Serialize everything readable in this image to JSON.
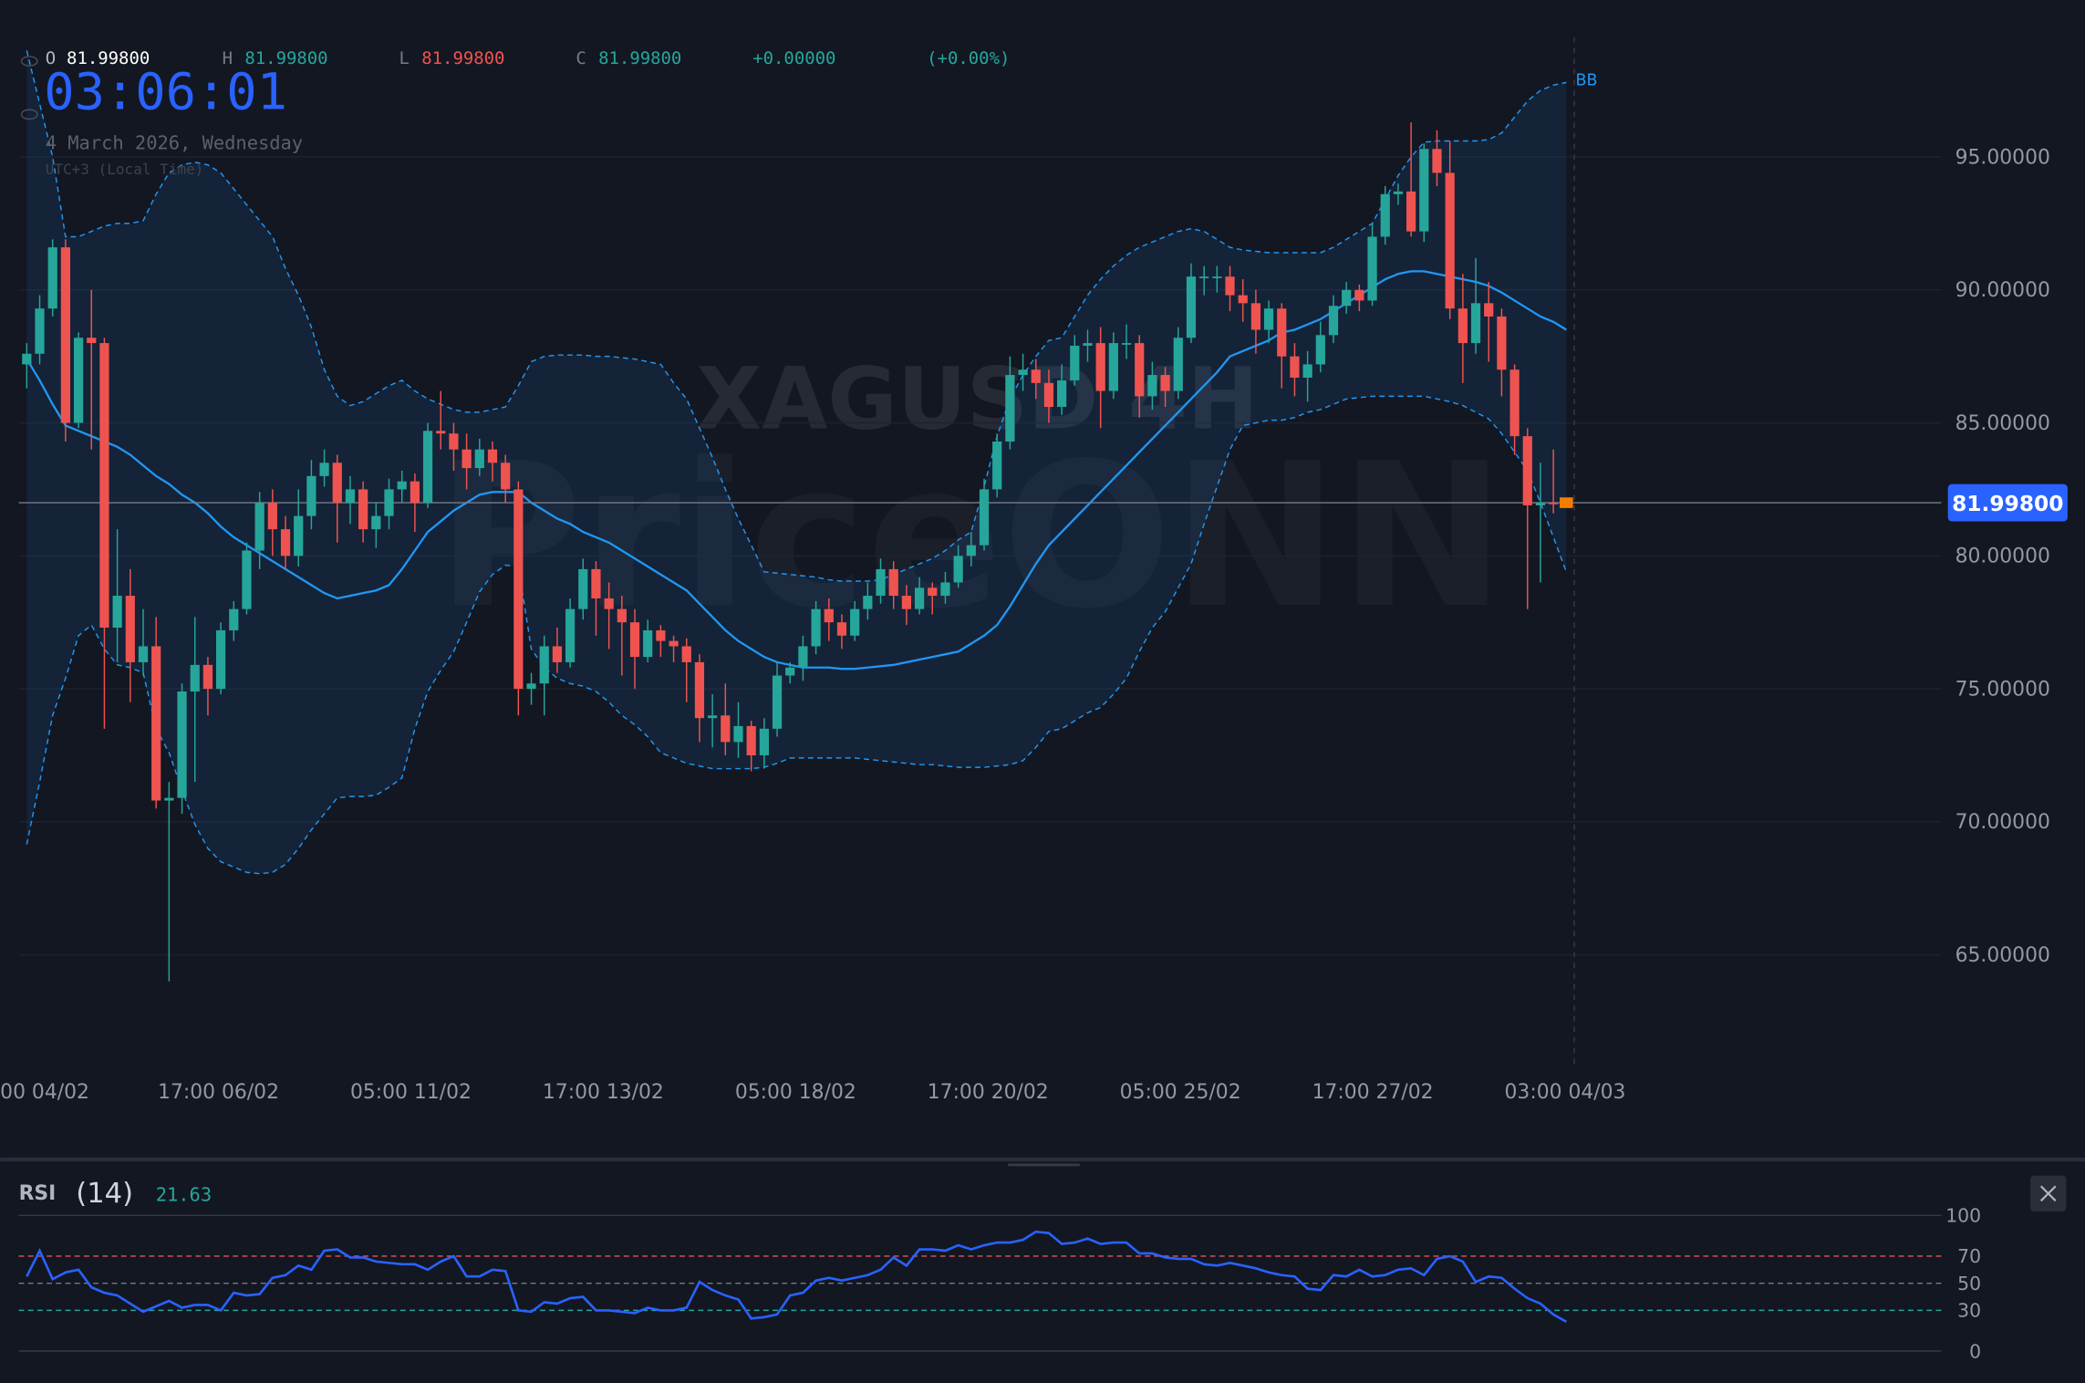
{
  "header": {
    "o_label": "O",
    "open": "81.99800",
    "h_label": "H",
    "high": "81.99800",
    "l_label": "L",
    "low": "81.99800",
    "c_label": "C",
    "close": "81.99800",
    "change": "+0.00000",
    "change_pct": "(+0.00%)"
  },
  "clock": {
    "time": "03:06:01",
    "date": "4 March 2026, Wednesday",
    "timezone": "UTC+3 (Local Time)"
  },
  "chart_data": [
    {
      "type": "candlestick",
      "watermark": "XAGUSD 4H",
      "brand": "PriceONN",
      "x_labels": [
        "00 04/02",
        "17:00 06/02",
        "05:00 11/02",
        "17:00 13/02",
        "05:00 18/02",
        "17:00 20/02",
        "05:00 25/02",
        "17:00 27/02",
        "03:00 04/03"
      ],
      "open": [
        87.2,
        87.6,
        89.3,
        91.6,
        85.0,
        88.2,
        88.0,
        77.3,
        78.5,
        76.0,
        76.6,
        70.8,
        70.9,
        74.9,
        75.9,
        75.0,
        77.2,
        78.0,
        80.2,
        82.0,
        81.0,
        80.0,
        81.5,
        83.0,
        83.5,
        82.0,
        82.5,
        81.0,
        81.5,
        82.5,
        82.8,
        82.0,
        84.7,
        84.6,
        84.0,
        83.3,
        84.0,
        83.5,
        82.5,
        75.0,
        75.2,
        76.6,
        76.0,
        78.0,
        79.5,
        78.4,
        78.0,
        77.5,
        76.2,
        77.2,
        76.8,
        76.6,
        76.0,
        73.9,
        74.0,
        73.0,
        73.6,
        72.5,
        73.5,
        75.5,
        75.8,
        76.6,
        78.0,
        77.5,
        77.0,
        78.0,
        78.5,
        79.5,
        78.5,
        78.0,
        78.8,
        78.5,
        79.0,
        80.0,
        80.4,
        82.5,
        84.3,
        86.8,
        87.0,
        86.5,
        85.6,
        86.6,
        87.9,
        88.0,
        86.2,
        88.0,
        88.0,
        86.0,
        86.8,
        86.2,
        88.2,
        90.5,
        90.5,
        90.5,
        89.8,
        89.5,
        88.5,
        89.3,
        87.5,
        86.7,
        87.2,
        88.3,
        89.4,
        90.0,
        89.6,
        92.0,
        93.6,
        93.7,
        92.2,
        95.3,
        94.4,
        89.3,
        88.0,
        89.5,
        89.0,
        87.0,
        84.5,
        81.9,
        82.0,
        81.998
      ],
      "high": [
        88.0,
        89.8,
        91.9,
        91.9,
        88.4,
        90.0,
        88.2,
        81.0,
        79.5,
        78.0,
        77.7,
        71.5,
        75.2,
        77.7,
        76.2,
        77.5,
        78.3,
        80.5,
        82.4,
        82.5,
        81.5,
        82.5,
        83.6,
        84.0,
        83.8,
        83.0,
        82.8,
        82.0,
        82.9,
        83.2,
        83.1,
        85.0,
        86.2,
        85.0,
        84.6,
        84.4,
        84.3,
        83.8,
        82.8,
        75.6,
        77.0,
        77.3,
        78.4,
        79.9,
        79.8,
        79.0,
        78.5,
        78.0,
        77.6,
        77.4,
        77.0,
        76.9,
        76.3,
        74.8,
        75.2,
        74.5,
        73.8,
        73.9,
        76.0,
        76.0,
        77.0,
        78.3,
        78.4,
        77.8,
        78.3,
        79.0,
        79.9,
        79.8,
        78.9,
        79.2,
        79.0,
        79.4,
        80.4,
        80.9,
        82.9,
        84.6,
        87.5,
        87.6,
        87.4,
        87.0,
        87.2,
        88.3,
        88.5,
        88.6,
        88.4,
        88.7,
        88.3,
        87.3,
        87.1,
        88.6,
        91.0,
        90.9,
        90.9,
        90.9,
        90.4,
        90.0,
        89.6,
        89.5,
        88.0,
        87.7,
        88.8,
        89.8,
        90.3,
        90.2,
        92.5,
        93.9,
        94.0,
        96.3,
        95.5,
        96.0,
        95.6,
        90.6,
        91.2,
        90.3,
        89.3,
        87.2,
        84.8,
        83.5,
        84.0,
        81.998
      ],
      "low": [
        86.3,
        87.2,
        89.0,
        84.3,
        84.8,
        84.0,
        73.5,
        76.0,
        74.5,
        75.5,
        70.5,
        64.0,
        70.3,
        71.5,
        74.0,
        74.8,
        76.8,
        77.8,
        79.5,
        80.0,
        79.5,
        79.6,
        81.0,
        82.6,
        80.5,
        81.2,
        80.5,
        80.3,
        81.0,
        82.0,
        80.9,
        81.8,
        84.0,
        83.2,
        82.5,
        83.0,
        82.8,
        82.0,
        74.0,
        74.4,
        74.0,
        75.6,
        75.8,
        77.6,
        77.0,
        76.5,
        75.5,
        75.0,
        76.0,
        76.2,
        76.0,
        74.5,
        73.0,
        72.8,
        72.5,
        72.4,
        71.9,
        72.0,
        73.2,
        75.2,
        75.3,
        76.3,
        76.8,
        76.5,
        76.8,
        77.6,
        78.2,
        78.0,
        77.4,
        77.8,
        77.8,
        78.2,
        78.8,
        79.6,
        80.2,
        82.2,
        84.0,
        86.2,
        85.9,
        85.0,
        85.3,
        86.4,
        87.3,
        84.8,
        85.9,
        87.4,
        85.2,
        85.5,
        85.6,
        85.9,
        88.0,
        89.8,
        89.9,
        89.2,
        88.8,
        87.6,
        88.0,
        86.3,
        86.0,
        85.8,
        86.9,
        88.0,
        89.1,
        89.2,
        89.4,
        91.7,
        93.2,
        92.0,
        91.8,
        93.9,
        88.9,
        86.5,
        87.6,
        87.3,
        86.0,
        83.8,
        78.0,
        79.0,
        81.6,
        81.998
      ],
      "close": [
        87.6,
        89.3,
        91.6,
        85.0,
        88.2,
        88.0,
        77.3,
        78.5,
        76.0,
        76.6,
        70.8,
        70.9,
        74.9,
        75.9,
        75.0,
        77.2,
        78.0,
        80.2,
        82.0,
        81.0,
        80.0,
        81.5,
        83.0,
        83.5,
        82.0,
        82.5,
        81.0,
        81.5,
        82.5,
        82.8,
        82.0,
        84.7,
        84.6,
        84.0,
        83.3,
        84.0,
        83.5,
        82.5,
        75.0,
        75.2,
        76.6,
        76.0,
        78.0,
        79.5,
        78.4,
        78.0,
        77.5,
        76.2,
        77.2,
        76.8,
        76.6,
        76.0,
        73.9,
        74.0,
        73.0,
        73.6,
        72.5,
        73.5,
        75.5,
        75.8,
        76.6,
        78.0,
        77.5,
        77.0,
        78.0,
        78.5,
        79.5,
        78.5,
        78.0,
        78.8,
        78.5,
        79.0,
        80.0,
        80.4,
        82.5,
        84.3,
        86.8,
        87.0,
        86.5,
        85.6,
        86.6,
        87.9,
        88.0,
        86.2,
        88.0,
        88.0,
        86.0,
        86.8,
        86.2,
        88.2,
        90.5,
        90.5,
        90.5,
        89.8,
        89.5,
        88.5,
        89.3,
        87.5,
        86.7,
        87.2,
        88.3,
        89.4,
        90.0,
        89.6,
        92.0,
        93.6,
        93.7,
        92.2,
        95.3,
        94.4,
        89.3,
        88.0,
        89.5,
        89.0,
        87.0,
        84.5,
        81.9,
        82.0,
        81.95,
        81.998
      ],
      "up_color": "#26a69a",
      "down_color": "#ef5350",
      "ylim": [
        60.9,
        100.9
      ],
      "yticks": [
        {
          "value": 65,
          "label": "65.00000"
        },
        {
          "value": 70,
          "label": "70.00000"
        },
        {
          "value": 75,
          "label": "75.00000"
        },
        {
          "value": 80,
          "label": "80.00000"
        },
        {
          "value": 85,
          "label": "85.00000"
        },
        {
          "value": 90,
          "label": "90.00000"
        },
        {
          "value": 95,
          "label": "95.00000"
        }
      ],
      "grid": true,
      "current_price": {
        "value": 81.998,
        "label": "81.99800"
      },
      "indicator": {
        "name": "BB",
        "color": "#2196f3",
        "upper": [
          99.0,
          97.0,
          95.0,
          92.0,
          92.0,
          92.2,
          92.4,
          92.5,
          92.5,
          92.6,
          93.6,
          94.4,
          94.7,
          94.8,
          94.7,
          94.4,
          93.8,
          93.2,
          92.6,
          92.0,
          90.8,
          89.8,
          88.6,
          87.0,
          86.0,
          85.65,
          85.8,
          86.1,
          86.4,
          86.6,
          86.2,
          85.9,
          85.7,
          85.5,
          85.4,
          85.4,
          85.5,
          85.6,
          86.4,
          87.3,
          87.5,
          87.55,
          87.55,
          87.55,
          87.5,
          87.5,
          87.45,
          87.4,
          87.3,
          87.2,
          86.5,
          85.9,
          84.8,
          83.7,
          82.5,
          81.4,
          80.4,
          79.4,
          79.35,
          79.3,
          79.25,
          79.2,
          79.1,
          79.05,
          79.05,
          79.05,
          79.1,
          79.3,
          79.5,
          79.7,
          79.9,
          80.2,
          80.6,
          80.9,
          82.6,
          84.5,
          85.9,
          86.8,
          87.5,
          88.1,
          88.2,
          89.0,
          89.8,
          90.4,
          90.9,
          91.3,
          91.6,
          91.8,
          92.0,
          92.2,
          92.3,
          92.2,
          91.9,
          91.6,
          91.5,
          91.45,
          91.4,
          91.4,
          91.4,
          91.4,
          91.4,
          91.6,
          91.9,
          92.2,
          92.5,
          93.4,
          94.3,
          95.0,
          95.55,
          95.6,
          95.6,
          95.6,
          95.6,
          95.65,
          95.9,
          96.5,
          97.1,
          97.5,
          97.7,
          97.8
        ],
        "middle": [
          87.4,
          86.6,
          85.7,
          84.9,
          84.7,
          84.5,
          84.3,
          84.1,
          83.8,
          83.4,
          83.0,
          82.7,
          82.3,
          82.0,
          81.6,
          81.1,
          80.7,
          80.4,
          80.1,
          79.8,
          79.5,
          79.2,
          78.9,
          78.6,
          78.4,
          78.5,
          78.6,
          78.7,
          78.9,
          79.5,
          80.2,
          80.9,
          81.3,
          81.7,
          82.0,
          82.3,
          82.4,
          82.4,
          82.4,
          82.0,
          81.7,
          81.4,
          81.2,
          80.9,
          80.7,
          80.5,
          80.2,
          79.9,
          79.6,
          79.3,
          79.0,
          78.7,
          78.2,
          77.7,
          77.2,
          76.8,
          76.5,
          76.2,
          76.0,
          75.9,
          75.8,
          75.8,
          75.8,
          75.75,
          75.75,
          75.8,
          75.85,
          75.9,
          76.0,
          76.1,
          76.2,
          76.3,
          76.4,
          76.7,
          77.0,
          77.4,
          78.1,
          78.9,
          79.7,
          80.4,
          80.9,
          81.4,
          81.9,
          82.4,
          82.9,
          83.4,
          83.9,
          84.4,
          84.9,
          85.4,
          85.9,
          86.4,
          86.9,
          87.5,
          87.7,
          87.9,
          88.1,
          88.4,
          88.5,
          88.7,
          88.9,
          89.2,
          89.5,
          89.8,
          90.1,
          90.4,
          90.6,
          90.7,
          90.7,
          90.6,
          90.5,
          90.4,
          90.3,
          90.15,
          89.9,
          89.6,
          89.3,
          89.0,
          88.8,
          88.5
        ],
        "lower": [
          69.15,
          71.5,
          74.0,
          75.4,
          77.0,
          77.4,
          76.5,
          75.9,
          75.8,
          75.6,
          73.5,
          72.6,
          71.2,
          69.9,
          69.0,
          68.5,
          68.3,
          68.1,
          68.05,
          68.1,
          68.4,
          69.0,
          69.7,
          70.3,
          70.9,
          70.95,
          70.95,
          71.0,
          71.3,
          71.65,
          73.5,
          74.9,
          75.7,
          76.4,
          77.5,
          78.65,
          79.3,
          79.65,
          79.6,
          76.5,
          75.8,
          75.4,
          75.2,
          75.1,
          74.9,
          74.5,
          74.0,
          73.65,
          73.2,
          72.6,
          72.4,
          72.2,
          72.1,
          72.0,
          72.0,
          72.0,
          72.0,
          72.05,
          72.2,
          72.4,
          72.4,
          72.4,
          72.4,
          72.4,
          72.4,
          72.35,
          72.3,
          72.25,
          72.2,
          72.15,
          72.15,
          72.1,
          72.05,
          72.05,
          72.05,
          72.1,
          72.15,
          72.3,
          72.8,
          73.4,
          73.5,
          73.8,
          74.1,
          74.3,
          74.8,
          75.4,
          76.4,
          77.3,
          77.9,
          78.8,
          79.7,
          81.2,
          82.6,
          84.0,
          84.9,
          85.0,
          85.1,
          85.1,
          85.2,
          85.4,
          85.5,
          85.7,
          85.9,
          85.95,
          86.0,
          86.0,
          86.0,
          86.0,
          86.0,
          85.9,
          85.8,
          85.65,
          85.4,
          85.15,
          84.6,
          83.9,
          83.2,
          82.0,
          80.7,
          79.4
        ]
      }
    },
    {
      "type": "line",
      "name": "RSI",
      "period": "(14)",
      "color": "#2962ff",
      "values": [
        55,
        74,
        53,
        58,
        60,
        47,
        43,
        41,
        35,
        29,
        33,
        37,
        32,
        34,
        34,
        30,
        43,
        41,
        42,
        54,
        56,
        63,
        60,
        74,
        75,
        69,
        69,
        66,
        65,
        64,
        64,
        60,
        66,
        70,
        55,
        55,
        60,
        59,
        30,
        29,
        36,
        35,
        39,
        40,
        30,
        30,
        29,
        28,
        32,
        30,
        30,
        32,
        51,
        45,
        41,
        38,
        24,
        25,
        27,
        41,
        43,
        52,
        54,
        52,
        54,
        56,
        60,
        69,
        63,
        75,
        75,
        74,
        78,
        75,
        78,
        80,
        80,
        82,
        88,
        87,
        79,
        80,
        83,
        79,
        80,
        80,
        72,
        72,
        69,
        68,
        68,
        64,
        63,
        65,
        63,
        61,
        58,
        56,
        55,
        46,
        45,
        56,
        55,
        60,
        55,
        56,
        60,
        61,
        56,
        68,
        70,
        66,
        51,
        55,
        54,
        46,
        39,
        35,
        27,
        21.63
      ],
      "ylim": [
        0,
        100
      ],
      "yticks": [
        0,
        30,
        50,
        70,
        100
      ],
      "tick_colors": [
        "#363a45",
        "#26a69a",
        "#787b86",
        "#ef5350",
        "#363a45"
      ],
      "tick_styles": [
        "solid",
        "dashed",
        "dashed",
        "dashed",
        "solid"
      ]
    }
  ]
}
